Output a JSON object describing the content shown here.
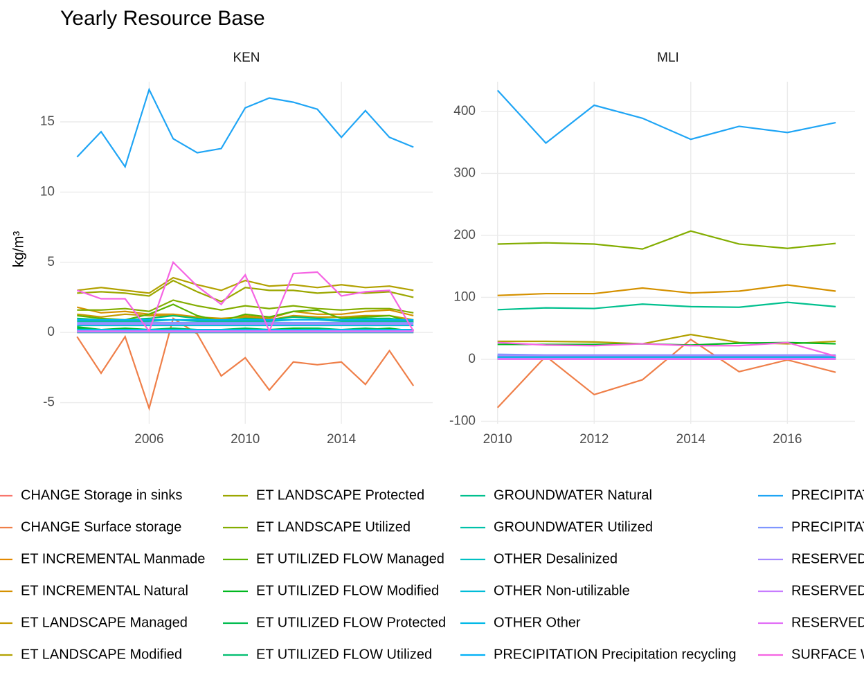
{
  "title": "Yearly Resource Base",
  "y_label": "kg/m³",
  "chart_data": [
    {
      "type": "line",
      "title": "KEN",
      "x": [
        2003,
        2004,
        2005,
        2006,
        2007,
        2008,
        2009,
        2010,
        2011,
        2012,
        2013,
        2014,
        2015,
        2016,
        2017
      ],
      "xlim": [
        2002.3,
        2017.8
      ],
      "xticks": [
        2006,
        2010,
        2014
      ],
      "ylim": [
        -6.5,
        17.86
      ],
      "yticks": [
        -5,
        0,
        5,
        10,
        15
      ],
      "grid": true,
      "series": [
        {
          "name": "CHANGE Storage in sinks",
          "color": "#F8766D",
          "values": [
            0,
            0,
            0,
            0,
            0,
            0,
            0,
            0,
            0,
            0,
            0,
            0,
            0,
            0,
            0
          ]
        },
        {
          "name": "CHANGE Surface storage",
          "color": "#EF7F49",
          "values": [
            -0.3,
            -2.9,
            -0.3,
            -5.4,
            1.0,
            -0.1,
            -3.1,
            -1.8,
            -4.1,
            -2.1,
            -2.3,
            -2.1,
            -3.7,
            -1.3,
            -3.8
          ]
        },
        {
          "name": "ET INCREMENTAL Manmade",
          "color": "#E38900",
          "values": [
            0.1,
            0.1,
            0.1,
            0.1,
            0.1,
            0.1,
            0.1,
            0.1,
            0.1,
            0.1,
            0.1,
            0.1,
            0.1,
            0.1,
            0.1
          ]
        },
        {
          "name": "ET INCREMENTAL Natural",
          "color": "#D59100",
          "values": [
            1.8,
            1.4,
            1.5,
            1.3,
            1.3,
            1.1,
            0.9,
            1.2,
            1.0,
            1.5,
            1.3,
            1.3,
            1.5,
            1.6,
            1.2
          ]
        },
        {
          "name": "ET LANDSCAPE Managed",
          "color": "#C49A00",
          "values": [
            1.3,
            1.1,
            1.3,
            1.2,
            1.2,
            1.1,
            1.0,
            1.1,
            0.9,
            1.2,
            1.1,
            1.1,
            1.2,
            1.2,
            0.9
          ]
        },
        {
          "name": "ET LANDSCAPE Modified",
          "color": "#B2A100",
          "values": [
            3.0,
            3.2,
            3.0,
            2.8,
            3.9,
            3.4,
            3.0,
            3.7,
            3.3,
            3.4,
            3.2,
            3.4,
            3.2,
            3.3,
            3.0
          ]
        },
        {
          "name": "ET LANDSCAPE Protected",
          "color": "#9CA700",
          "values": [
            2.8,
            2.9,
            2.8,
            2.6,
            3.7,
            2.9,
            2.2,
            3.2,
            3.0,
            3.0,
            2.8,
            2.9,
            2.8,
            2.9,
            2.5
          ]
        },
        {
          "name": "ET LANDSCAPE Utilized",
          "color": "#83AD00",
          "values": [
            1.6,
            1.6,
            1.7,
            1.5,
            2.3,
            1.9,
            1.6,
            1.9,
            1.7,
            1.9,
            1.7,
            1.6,
            1.7,
            1.7,
            1.4
          ]
        },
        {
          "name": "ET UTILIZED FLOW Managed",
          "color": "#5BB300",
          "values": [
            1.2,
            1.0,
            0.9,
            1.3,
            2.0,
            1.2,
            0.8,
            1.3,
            1.1,
            1.5,
            1.6,
            1.0,
            1.1,
            1.2,
            0.7
          ]
        },
        {
          "name": "ET UTILIZED FLOW Modified",
          "color": "#00B81F",
          "values": [
            0.4,
            0.2,
            0.3,
            0.2,
            0.2,
            0.2,
            0.1,
            0.2,
            0.2,
            0.3,
            0.3,
            0.1,
            0.2,
            0.3,
            0.1
          ]
        },
        {
          "name": "ET UTILIZED FLOW Protected",
          "color": "#00BB4E",
          "values": [
            0.3,
            0.2,
            0.2,
            0.2,
            0.3,
            0.2,
            0.2,
            0.3,
            0.2,
            0.2,
            0.3,
            0.2,
            0.3,
            0.2,
            0.2
          ]
        },
        {
          "name": "ET UTILIZED FLOW Utilized",
          "color": "#00BE70",
          "values": [
            1.0,
            0.9,
            0.9,
            1.0,
            1.2,
            1.0,
            0.8,
            1.0,
            0.9,
            1.1,
            1.0,
            0.9,
            1.0,
            1.0,
            0.8
          ]
        },
        {
          "name": "GROUNDWATER Natural",
          "color": "#00C08E",
          "values": [
            0.8,
            0.8,
            0.8,
            0.8,
            0.9,
            0.8,
            0.8,
            0.8,
            0.8,
            0.9,
            0.9,
            0.8,
            0.8,
            0.8,
            0.8
          ]
        },
        {
          "name": "GROUNDWATER Utilized",
          "color": "#00C1AA",
          "values": [
            0.1,
            0.1,
            0.1,
            0.1,
            0.1,
            0.1,
            0.1,
            0.1,
            0.1,
            0.1,
            0.1,
            0.1,
            0.1,
            0.1,
            0.1
          ]
        },
        {
          "name": "OTHER Desalinized",
          "color": "#00C0C3",
          "values": [
            0,
            0,
            0,
            0,
            0,
            0,
            0,
            0,
            0,
            0,
            0,
            0,
            0,
            0,
            0
          ]
        },
        {
          "name": "OTHER Non-utilizable",
          "color": "#00BCD8",
          "values": [
            0.5,
            0.5,
            0.5,
            0.5,
            0.5,
            0.5,
            0.5,
            0.5,
            0.5,
            0.5,
            0.5,
            0.5,
            0.5,
            0.5,
            0.5
          ]
        },
        {
          "name": "OTHER Other",
          "color": "#00B8E7",
          "values": [
            0.2,
            0.2,
            0.2,
            0.2,
            0.2,
            0.2,
            0.2,
            0.2,
            0.2,
            0.2,
            0.2,
            0.2,
            0.2,
            0.2,
            0.2
          ]
        },
        {
          "name": "PRECIPITATION Precipitation recycling",
          "color": "#00B0F6",
          "values": [
            0.9,
            0.9,
            0.9,
            0.9,
            0.9,
            0.9,
            0.9,
            0.9,
            0.9,
            0.9,
            0.9,
            0.9,
            0.9,
            0.9,
            0.9
          ]
        },
        {
          "name": "PRECIPITAT",
          "color": "#1FA5F5",
          "values": [
            12.5,
            14.3,
            11.8,
            17.3,
            13.8,
            12.8,
            13.1,
            16.0,
            16.7,
            16.4,
            15.9,
            13.9,
            15.8,
            13.9,
            13.2
          ]
        },
        {
          "name": "PRECIPITAT",
          "color": "#7F96FF",
          "values": [
            0.7,
            0.7,
            0.7,
            0.7,
            0.7,
            0.7,
            0.7,
            0.7,
            0.7,
            0.7,
            0.7,
            0.7,
            0.7,
            0.7,
            0.7
          ]
        },
        {
          "name": "RESERVED",
          "color": "#A58AFF",
          "values": [
            0.6,
            0.6,
            0.6,
            0.6,
            0.6,
            0.6,
            0.6,
            0.6,
            0.6,
            0.6,
            0.6,
            0.6,
            0.6,
            0.6,
            0.6
          ]
        },
        {
          "name": "RESERVED",
          "color": "#C77CFF",
          "values": [
            0.1,
            0.1,
            0.1,
            0.1,
            0.1,
            0.1,
            0.1,
            0.1,
            0.1,
            0.1,
            0.1,
            0.1,
            0.1,
            0.1,
            0.1
          ]
        },
        {
          "name": "RESERVED",
          "color": "#E26EF7",
          "values": [
            0.05,
            0.05,
            0.05,
            0.05,
            0.05,
            0.05,
            0.05,
            0.05,
            0.05,
            0.05,
            0.05,
            0.05,
            0.05,
            0.05,
            0.05
          ]
        },
        {
          "name": "SURFACE W",
          "color": "#F564E3",
          "values": [
            3.0,
            2.4,
            2.4,
            0.1,
            5.0,
            3.3,
            2.0,
            4.1,
            0.1,
            4.2,
            4.3,
            2.6,
            2.9,
            3.0,
            0.1
          ]
        }
      ]
    },
    {
      "type": "line",
      "title": "MLI",
      "x": [
        2010,
        2011,
        2012,
        2013,
        2014,
        2015,
        2016,
        2017
      ],
      "xlim": [
        2009.66,
        2017.4
      ],
      "xticks": [
        2010,
        2012,
        2014,
        2016
      ],
      "ylim": [
        -104,
        448
      ],
      "yticks": [
        -100,
        0,
        100,
        200,
        300,
        400
      ],
      "grid": true,
      "series": [
        {
          "color": "#F8766D",
          "values": [
            0,
            0,
            0,
            0,
            0,
            0,
            0,
            0
          ]
        },
        {
          "color": "#EF7F49",
          "values": [
            -78,
            5,
            -57,
            -33,
            32,
            -20,
            -1,
            -21
          ]
        },
        {
          "color": "#E38900",
          "values": [
            1,
            1,
            1,
            1,
            1,
            1,
            1,
            1
          ]
        },
        {
          "color": "#D59100",
          "values": [
            103,
            106,
            106,
            115,
            107,
            110,
            120,
            110
          ]
        },
        {
          "color": "#C49A00",
          "values": [
            2,
            2,
            2,
            2,
            2,
            2,
            2,
            2
          ]
        },
        {
          "color": "#B2A100",
          "values": [
            29,
            29,
            28,
            25,
            40,
            27,
            25,
            29
          ]
        },
        {
          "color": "#9CA700",
          "values": [
            3,
            3,
            3,
            3,
            3,
            3,
            3,
            3
          ]
        },
        {
          "color": "#83AD00",
          "values": [
            186,
            188,
            186,
            178,
            207,
            186,
            179,
            187
          ]
        },
        {
          "color": "#5BB300",
          "values": [
            4,
            4,
            4,
            4,
            4,
            4,
            4,
            4
          ]
        },
        {
          "color": "#00B81F",
          "values": [
            24,
            24,
            24,
            25,
            23,
            26,
            27,
            25
          ]
        },
        {
          "color": "#00BB4E",
          "values": [
            2,
            2,
            2,
            2,
            2,
            2,
            2,
            2
          ]
        },
        {
          "color": "#00BE70",
          "values": [
            5,
            5,
            5,
            5,
            5,
            5,
            5,
            5
          ]
        },
        {
          "color": "#00C08E",
          "values": [
            80,
            83,
            82,
            89,
            85,
            84,
            92,
            85
          ]
        },
        {
          "color": "#00C1AA",
          "values": [
            3,
            3,
            3,
            3,
            3,
            3,
            3,
            3
          ]
        },
        {
          "color": "#00C0C3",
          "values": [
            0,
            0,
            0,
            0,
            0,
            0,
            0,
            0
          ]
        },
        {
          "color": "#00BCD8",
          "values": [
            6,
            6,
            6,
            6,
            6,
            6,
            6,
            6
          ]
        },
        {
          "color": "#00B8E7",
          "values": [
            2,
            2,
            2,
            2,
            2,
            2,
            2,
            2
          ]
        },
        {
          "color": "#00B0F6",
          "values": [
            5,
            5,
            5,
            5,
            5,
            5,
            5,
            5
          ]
        },
        {
          "color": "#1FA5F5",
          "values": [
            434,
            349,
            410,
            389,
            355,
            376,
            366,
            382
          ]
        },
        {
          "color": "#7F96FF",
          "values": [
            8,
            7,
            7,
            7,
            7,
            7,
            7,
            7
          ]
        },
        {
          "color": "#A58AFF",
          "values": [
            6,
            6,
            6,
            6,
            6,
            6,
            6,
            6
          ]
        },
        {
          "color": "#C77CFF",
          "values": [
            1,
            1,
            1,
            1,
            1,
            1,
            1,
            1
          ]
        },
        {
          "color": "#E26EF7",
          "values": [
            0,
            0,
            0,
            0,
            0,
            0,
            0,
            0
          ]
        },
        {
          "color": "#F564E3",
          "values": [
            27,
            23,
            22,
            25,
            22,
            22,
            27,
            5
          ]
        }
      ]
    }
  ]
}
